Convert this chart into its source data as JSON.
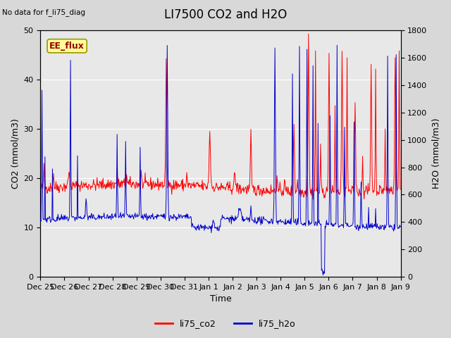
{
  "title": "LI7500 CO2 and H2O",
  "top_left_text": "No data for f_li75_diag",
  "box_label": "EE_flux",
  "xlabel": "Time",
  "ylabel_left": "CO2 (mmol/m3)",
  "ylabel_right": "H2O (mmol/m3)",
  "ylim_left": [
    0,
    50
  ],
  "ylim_right": [
    0,
    1800
  ],
  "co2_color": "#ff0000",
  "h2o_color": "#0000cc",
  "legend_co2": "li75_co2",
  "legend_h2o": "li75_h2o",
  "fig_facecolor": "#d8d8d8",
  "plot_bg_color": "#e8e8e8",
  "box_facecolor": "#ffff99",
  "box_edgecolor": "#999900",
  "box_textcolor": "#990000",
  "xtick_labels": [
    "Dec 25",
    "Dec 26",
    "Dec 27",
    "Dec 28",
    "Dec 29",
    "Dec 30",
    "Dec 31",
    "Jan 1",
    "Jan 2",
    "Jan 3",
    "Jan 4",
    "Jan 5",
    "Jan 6",
    "Jan 7",
    "Jan 8",
    "Jan 9"
  ],
  "grid_color": "#ffffff",
  "title_fontsize": 12,
  "label_fontsize": 9,
  "tick_fontsize": 8,
  "legend_fontsize": 9
}
